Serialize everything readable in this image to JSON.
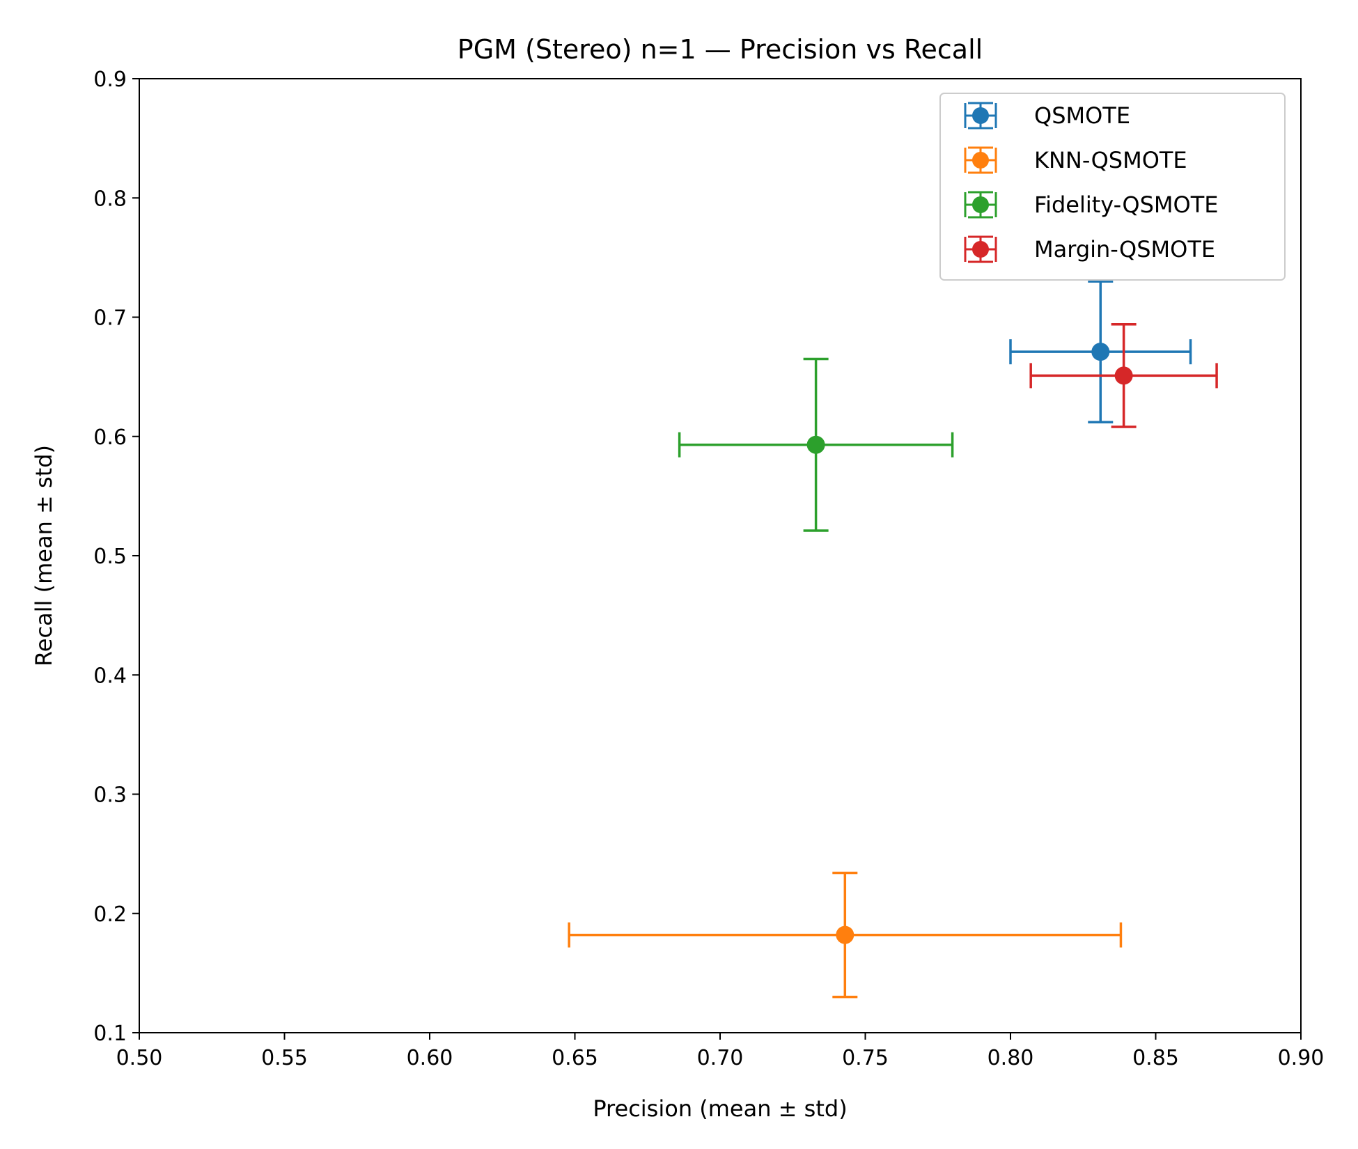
{
  "chart_data": {
    "type": "scatter",
    "title": "PGM (Stereo) n=1 — Precision vs Recall",
    "xlabel": "Precision (mean ± std)",
    "ylabel": "Recall (mean ± std)",
    "xlim": [
      0.5,
      0.9
    ],
    "ylim": [
      0.1,
      0.9
    ],
    "xticks": [
      "0.50",
      "0.55",
      "0.60",
      "0.65",
      "0.70",
      "0.75",
      "0.80",
      "0.85",
      "0.90"
    ],
    "yticks": [
      "0.1",
      "0.2",
      "0.3",
      "0.4",
      "0.5",
      "0.6",
      "0.7",
      "0.8",
      "0.9"
    ],
    "grid": false,
    "legend_position": "top-right",
    "series": [
      {
        "name": "QSMOTE",
        "color": "#1f77b4",
        "x": 0.831,
        "y": 0.671,
        "xerr": 0.031,
        "yerr": 0.059
      },
      {
        "name": "KNN-QSMOTE",
        "color": "#ff7f0e",
        "x": 0.743,
        "y": 0.182,
        "xerr": 0.095,
        "yerr": 0.052
      },
      {
        "name": "Fidelity-QSMOTE",
        "color": "#2ca02c",
        "x": 0.733,
        "y": 0.593,
        "xerr": 0.047,
        "yerr": 0.072
      },
      {
        "name": "Margin-QSMOTE",
        "color": "#d62728",
        "x": 0.839,
        "y": 0.651,
        "xerr": 0.032,
        "yerr": 0.043
      }
    ]
  }
}
